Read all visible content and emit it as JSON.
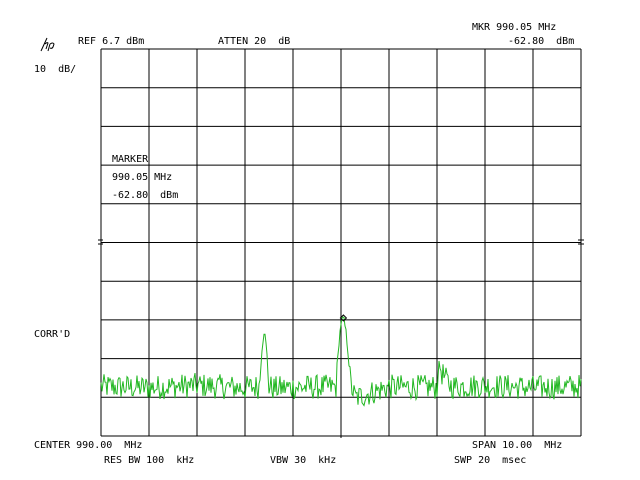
{
  "logo_text": "hp",
  "header": {
    "ref": "REF 6.7 dBm",
    "atten": "ATTEN 20  dB",
    "mkr_freq": "MKR 990.05 MHz",
    "mkr_ampl": "-62.80  dBm"
  },
  "scale": "10  dB/",
  "marker_box": {
    "title": "MARKER",
    "freq": "990.05 MHz",
    "ampl": "-62.80  dBm"
  },
  "corr_label": "CORR'D",
  "footer": {
    "center": "CENTER 990.00  MHz",
    "span": "SPAN 10.00  MHz",
    "res_bw": "RES BW 100  kHz",
    "vbw": "VBW 30  kHz",
    "swp": "SWP 20  msec"
  },
  "trace_color": "#22b722",
  "chart_data": {
    "type": "line",
    "title": "",
    "x_unit": "MHz",
    "y_unit": "dBm",
    "xlim": [
      985.0,
      995.0
    ],
    "ylim": [
      -93.3,
      6.7
    ],
    "grid": true,
    "divisions": {
      "x": 10,
      "y": 10
    },
    "series": [
      {
        "x": [
          985.0,
          986.0,
          987.0,
          988.0,
          988.3,
          988.35,
          988.4,
          988.45,
          988.5,
          988.6,
          989.0,
          989.9,
          989.95,
          990.0,
          990.05,
          990.1,
          990.15,
          990.2,
          990.3,
          991.0,
          992.0,
          992.0,
          992.05,
          992.1,
          992.2,
          992.3,
          993.0,
          994.0,
          995.0
        ],
        "y": [
          -80.5,
          -80.8,
          -80.2,
          -80.9,
          -80.5,
          -71.0,
          -65.8,
          -71.0,
          -80.5,
          -81.0,
          -80.7,
          -80.6,
          -70.0,
          -64.0,
          -62.8,
          -66.0,
          -72.0,
          -80.0,
          -83.5,
          -80.6,
          -80.7,
          -77.0,
          -74.5,
          -77.0,
          -79.0,
          -80.5,
          -80.3,
          -80.8,
          -80.5
        ]
      }
    ],
    "marker": {
      "x": 990.05,
      "y": -62.8
    }
  }
}
